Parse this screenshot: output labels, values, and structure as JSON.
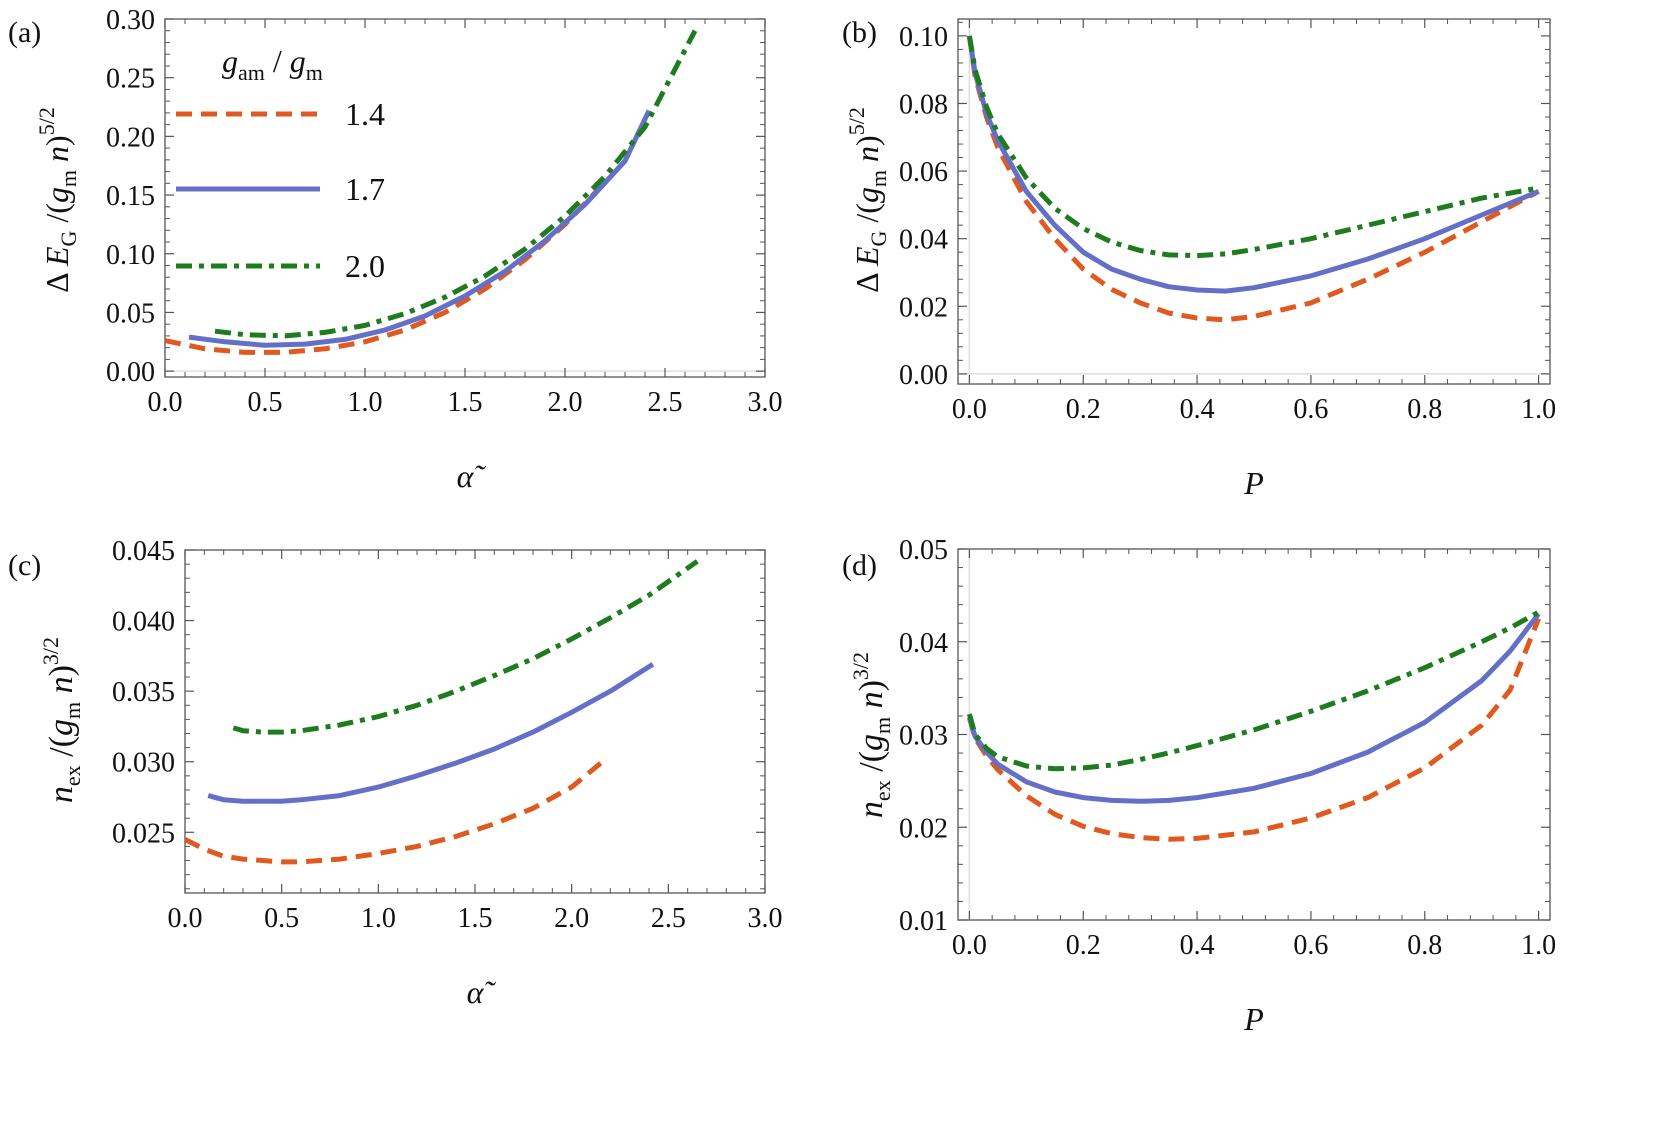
{
  "colors": {
    "orange": "#e0591f",
    "blue": "#6470c8",
    "green": "#1e7b1e"
  },
  "legend": {
    "title": "g_am / g_m",
    "entries": [
      {
        "label": "1.4",
        "series": 0
      },
      {
        "label": "1.7",
        "series": 1
      },
      {
        "label": "2.0",
        "series": 2
      }
    ]
  },
  "chart_data": [
    {
      "id": "a",
      "panel_label": "(a)",
      "type": "line",
      "xlabel": "α̃",
      "ylabel": "ΔE_G / (g_m n)^{5/2}",
      "xlim": [
        0,
        3
      ],
      "ylim": [
        -0.005,
        0.3
      ],
      "xticks": [
        "0.0",
        "0.5",
        "1.0",
        "1.5",
        "2.0",
        "2.5",
        "3.0"
      ],
      "yticks": [
        "0.00",
        "0.05",
        "0.10",
        "0.15",
        "0.20",
        "0.25",
        "0.30"
      ],
      "series": [
        {
          "name": "1.4",
          "color": "orange",
          "style": "dashed",
          "x": [
            0.0,
            0.2,
            0.4,
            0.6,
            0.8,
            1.0,
            1.2,
            1.4,
            1.6,
            1.8,
            2.0,
            2.2
          ],
          "y": [
            0.026,
            0.019,
            0.016,
            0.016,
            0.019,
            0.025,
            0.035,
            0.05,
            0.07,
            0.095,
            0.125,
            0.161
          ]
        },
        {
          "name": "1.7",
          "color": "blue",
          "style": "solid",
          "x": [
            0.12,
            0.3,
            0.5,
            0.7,
            0.9,
            1.1,
            1.3,
            1.5,
            1.7,
            1.9,
            2.1,
            2.3,
            2.42
          ],
          "y": [
            0.029,
            0.025,
            0.022,
            0.023,
            0.027,
            0.035,
            0.047,
            0.064,
            0.085,
            0.111,
            0.142,
            0.179,
            0.222
          ]
        },
        {
          "name": "2.0",
          "color": "green",
          "style": "dashdot",
          "x": [
            0.25,
            0.4,
            0.6,
            0.8,
            1.0,
            1.2,
            1.4,
            1.6,
            1.8,
            2.0,
            2.2,
            2.4,
            2.65
          ],
          "y": [
            0.034,
            0.031,
            0.03,
            0.033,
            0.039,
            0.049,
            0.063,
            0.081,
            0.104,
            0.132,
            0.166,
            0.208,
            0.29
          ]
        }
      ]
    },
    {
      "id": "b",
      "panel_label": "(b)",
      "type": "line",
      "xlabel": "P",
      "ylabel": "ΔE_G / (g_m n)^{5/2}",
      "xlim": [
        -0.02,
        1.02
      ],
      "ylim": [
        -0.003,
        0.105
      ],
      "xticks": [
        "0.0",
        "0.2",
        "0.4",
        "0.6",
        "0.8",
        "1.0"
      ],
      "yticks": [
        "0.00",
        "0.02",
        "0.04",
        "0.06",
        "0.08",
        "0.10"
      ],
      "series": [
        {
          "name": "1.4",
          "color": "orange",
          "style": "dashed",
          "x": [
            0.0,
            0.01,
            0.03,
            0.05,
            0.1,
            0.15,
            0.2,
            0.25,
            0.3,
            0.35,
            0.4,
            0.45,
            0.5,
            0.6,
            0.7,
            0.8,
            0.9,
            1.0
          ],
          "y": [
            0.1,
            0.088,
            0.076,
            0.067,
            0.051,
            0.04,
            0.031,
            0.025,
            0.021,
            0.018,
            0.0165,
            0.016,
            0.017,
            0.021,
            0.028,
            0.036,
            0.045,
            0.054
          ]
        },
        {
          "name": "1.7",
          "color": "blue",
          "style": "solid",
          "x": [
            0.0,
            0.01,
            0.03,
            0.05,
            0.1,
            0.15,
            0.2,
            0.25,
            0.3,
            0.35,
            0.4,
            0.45,
            0.5,
            0.6,
            0.7,
            0.8,
            0.9,
            1.0
          ],
          "y": [
            0.1,
            0.089,
            0.077,
            0.069,
            0.054,
            0.044,
            0.036,
            0.031,
            0.028,
            0.0258,
            0.0248,
            0.0245,
            0.0255,
            0.029,
            0.034,
            0.04,
            0.047,
            0.054
          ]
        },
        {
          "name": "2.0",
          "color": "green",
          "style": "dashdot",
          "x": [
            0.0,
            0.01,
            0.03,
            0.05,
            0.1,
            0.15,
            0.2,
            0.25,
            0.3,
            0.35,
            0.4,
            0.45,
            0.5,
            0.6,
            0.7,
            0.8,
            0.9,
            1.0
          ],
          "y": [
            0.1,
            0.09,
            0.079,
            0.071,
            0.058,
            0.049,
            0.043,
            0.039,
            0.0365,
            0.0352,
            0.035,
            0.0355,
            0.0368,
            0.04,
            0.044,
            0.048,
            0.052,
            0.055
          ]
        }
      ]
    },
    {
      "id": "c",
      "panel_label": "(c)",
      "type": "line",
      "xlabel": "α̃",
      "ylabel": "n_ex / (g_m n)^{3/2}",
      "xlim": [
        0,
        3
      ],
      "ylim": [
        0.0207,
        0.045
      ],
      "xticks": [
        "0.0",
        "0.5",
        "1.0",
        "1.5",
        "2.0",
        "2.5",
        "3.0"
      ],
      "yticks": [
        "0.025",
        "0.030",
        "0.035",
        "0.040",
        "0.045"
      ],
      "yticks_values": [
        0.025,
        0.03,
        0.035,
        0.04,
        0.045
      ],
      "series": [
        {
          "name": "1.4",
          "color": "orange",
          "style": "dashed",
          "x": [
            0.0,
            0.1,
            0.2,
            0.3,
            0.4,
            0.5,
            0.6,
            0.8,
            1.0,
            1.2,
            1.4,
            1.6,
            1.8,
            2.0,
            2.15
          ],
          "y": [
            0.0245,
            0.0238,
            0.0233,
            0.0231,
            0.023,
            0.0229,
            0.0229,
            0.0231,
            0.0235,
            0.024,
            0.0247,
            0.0256,
            0.0267,
            0.0282,
            0.0299
          ]
        },
        {
          "name": "1.7",
          "color": "blue",
          "style": "solid",
          "x": [
            0.12,
            0.2,
            0.3,
            0.4,
            0.5,
            0.6,
            0.8,
            1.0,
            1.2,
            1.4,
            1.6,
            1.8,
            2.0,
            2.2,
            2.42
          ],
          "y": [
            0.0276,
            0.0273,
            0.0272,
            0.0272,
            0.0272,
            0.0273,
            0.0276,
            0.0282,
            0.029,
            0.0299,
            0.0309,
            0.0321,
            0.0335,
            0.035,
            0.0369
          ]
        },
        {
          "name": "2.0",
          "color": "green",
          "style": "dashdot",
          "x": [
            0.25,
            0.3,
            0.4,
            0.5,
            0.6,
            0.8,
            1.0,
            1.2,
            1.4,
            1.6,
            1.8,
            2.0,
            2.2,
            2.4,
            2.65
          ],
          "y": [
            0.0324,
            0.0322,
            0.0321,
            0.0321,
            0.0322,
            0.0326,
            0.0332,
            0.034,
            0.035,
            0.0361,
            0.0373,
            0.0387,
            0.0402,
            0.0418,
            0.0442
          ]
        }
      ]
    },
    {
      "id": "d",
      "panel_label": "(d)",
      "type": "line",
      "xlabel": "P",
      "ylabel": "n_ex / (g_m n)^{3/2}",
      "xlim": [
        -0.02,
        1.02
      ],
      "ylim": [
        0.01,
        0.05
      ],
      "xticks": [
        "0.0",
        "0.2",
        "0.4",
        "0.6",
        "0.8",
        "1.0"
      ],
      "yticks": [
        "0.01",
        "0.02",
        "0.03",
        "0.04",
        "0.05"
      ],
      "series": [
        {
          "name": "1.4",
          "color": "orange",
          "style": "dashed",
          "x": [
            0.0,
            0.01,
            0.03,
            0.05,
            0.1,
            0.15,
            0.2,
            0.25,
            0.3,
            0.35,
            0.4,
            0.5,
            0.6,
            0.7,
            0.8,
            0.9,
            0.95,
            1.0
          ],
          "y": [
            0.0318,
            0.0296,
            0.0277,
            0.0262,
            0.0234,
            0.0214,
            0.0201,
            0.0193,
            0.0189,
            0.0187,
            0.0188,
            0.0195,
            0.021,
            0.0232,
            0.0264,
            0.031,
            0.0348,
            0.0425
          ]
        },
        {
          "name": "1.7",
          "color": "blue",
          "style": "solid",
          "x": [
            0.0,
            0.01,
            0.03,
            0.05,
            0.1,
            0.15,
            0.2,
            0.25,
            0.3,
            0.35,
            0.4,
            0.5,
            0.6,
            0.7,
            0.8,
            0.9,
            0.95,
            1.0
          ],
          "y": [
            0.0318,
            0.0298,
            0.0281,
            0.0268,
            0.0249,
            0.0238,
            0.0232,
            0.0229,
            0.0228,
            0.0229,
            0.0232,
            0.0242,
            0.0258,
            0.0281,
            0.0313,
            0.0358,
            0.039,
            0.043
          ]
        },
        {
          "name": "2.0",
          "color": "green",
          "style": "dashdot",
          "x": [
            0.0,
            0.01,
            0.03,
            0.05,
            0.1,
            0.15,
            0.2,
            0.25,
            0.3,
            0.35,
            0.4,
            0.5,
            0.6,
            0.7,
            0.8,
            0.9,
            0.95,
            1.0
          ],
          "y": [
            0.0322,
            0.03,
            0.0285,
            0.0276,
            0.0266,
            0.0263,
            0.0264,
            0.0267,
            0.0273,
            0.028,
            0.0288,
            0.0305,
            0.0325,
            0.0347,
            0.0372,
            0.04,
            0.0415,
            0.0432
          ]
        }
      ]
    }
  ]
}
